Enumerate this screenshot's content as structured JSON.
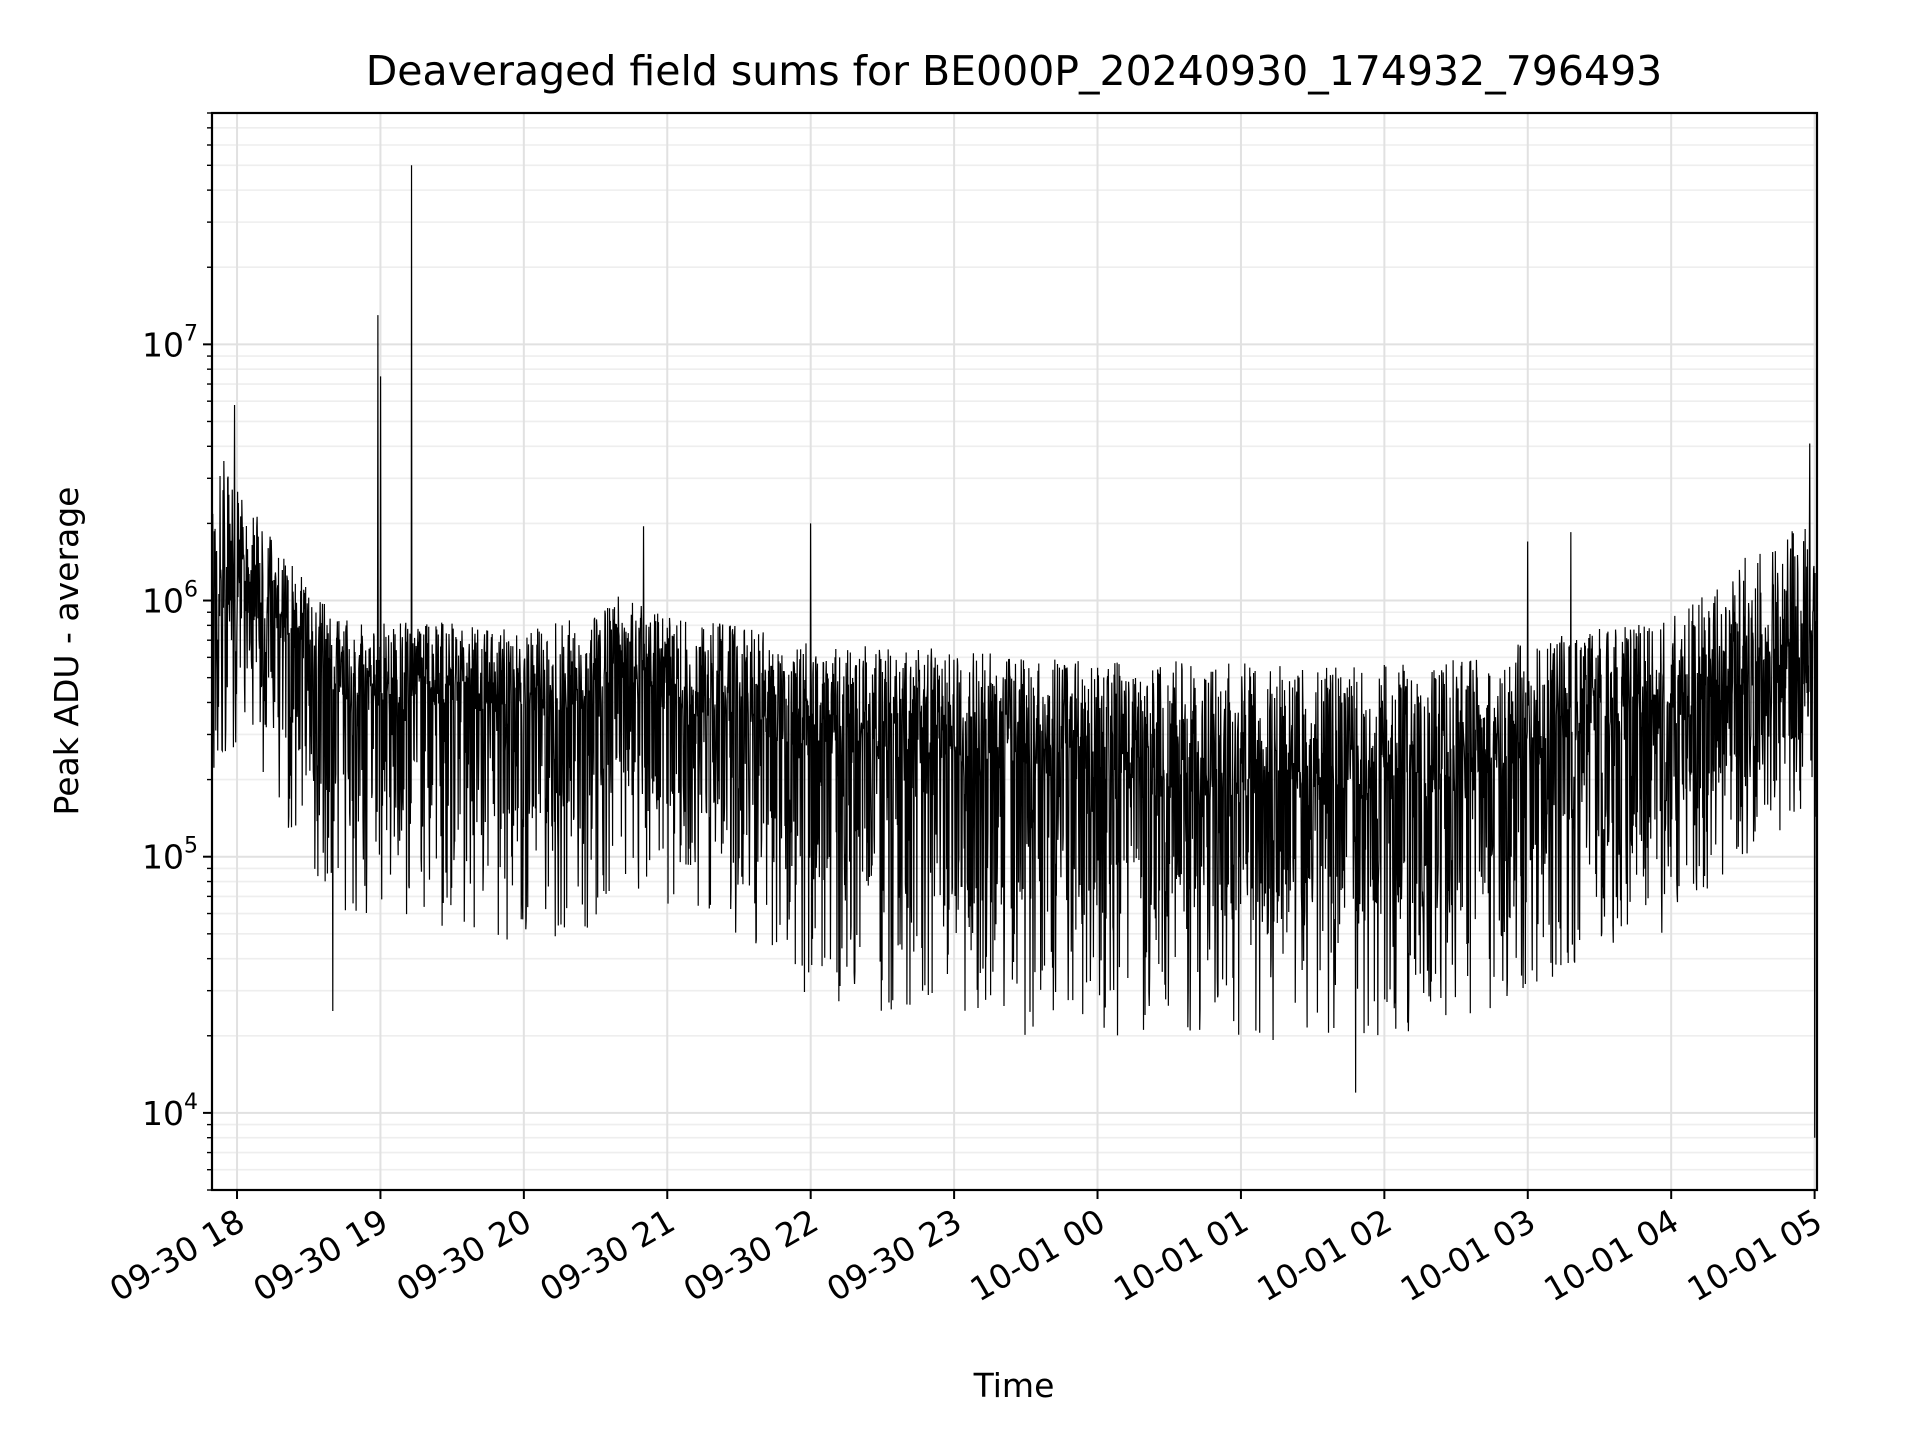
{
  "colors": {
    "line": "#000000",
    "grid": "#e1e1e1",
    "background": "#ffffff"
  },
  "chart_data": {
    "type": "line",
    "title": "Deaveraged field sums for BE000P_20240930_174932_796493",
    "xlabel": "Time",
    "ylabel": "Peak ADU - average",
    "yscale": "log",
    "grid": true,
    "xlim": [
      "2024-09-30T17:49:32",
      "2024-10-01T05:01:00"
    ],
    "ylim": [
      5000,
      80000000
    ],
    "x_ticks": [
      {
        "t": "2024-09-30T18:00:00",
        "label": "09-30 18"
      },
      {
        "t": "2024-09-30T19:00:00",
        "label": "09-30 19"
      },
      {
        "t": "2024-09-30T20:00:00",
        "label": "09-30 20"
      },
      {
        "t": "2024-09-30T21:00:00",
        "label": "09-30 21"
      },
      {
        "t": "2024-09-30T22:00:00",
        "label": "09-30 22"
      },
      {
        "t": "2024-09-30T23:00:00",
        "label": "09-30 23"
      },
      {
        "t": "2024-10-01T00:00:00",
        "label": "10-01 00"
      },
      {
        "t": "2024-10-01T01:00:00",
        "label": "10-01 01"
      },
      {
        "t": "2024-10-01T02:00:00",
        "label": "10-01 02"
      },
      {
        "t": "2024-10-01T03:00:00",
        "label": "10-01 03"
      },
      {
        "t": "2024-10-01T04:00:00",
        "label": "10-01 04"
      },
      {
        "t": "2024-10-01T05:00:00",
        "label": "10-01 05"
      }
    ],
    "y_ticks": [
      {
        "value": 10000,
        "base": "10",
        "exp": "4"
      },
      {
        "value": 100000,
        "base": "10",
        "exp": "5"
      },
      {
        "value": 1000000,
        "base": "10",
        "exp": "6"
      },
      {
        "value": 10000000,
        "base": "10",
        "exp": "7"
      }
    ],
    "series": [
      {
        "x_start": "2024-09-30T17:49:32",
        "x_end": "2024-10-01T05:01:00",
        "envelope": [
          {
            "t": "2024-09-30T17:49:32",
            "median": 1100000,
            "upper": 3000000,
            "lower": 200000
          },
          {
            "t": "2024-09-30T17:55:00",
            "median": 1500000,
            "upper": 5500000,
            "lower": 250000
          },
          {
            "t": "2024-09-30T18:05:00",
            "median": 1300000,
            "upper": 3000000,
            "lower": 300000
          },
          {
            "t": "2024-09-30T18:20:00",
            "median": 900000,
            "upper": 1800000,
            "lower": 120000
          },
          {
            "t": "2024-09-30T18:40:00",
            "median": 550000,
            "upper": 1100000,
            "lower": 60000
          },
          {
            "t": "2024-09-30T19:00:00",
            "median": 500000,
            "upper": 1000000,
            "lower": 60000
          },
          {
            "t": "2024-09-30T19:30:00",
            "median": 500000,
            "upper": 1000000,
            "lower": 50000
          },
          {
            "t": "2024-09-30T20:00:00",
            "median": 450000,
            "upper": 950000,
            "lower": 45000
          },
          {
            "t": "2024-09-30T20:25:00",
            "median": 500000,
            "upper": 1100000,
            "lower": 50000
          },
          {
            "t": "2024-09-30T20:40:00",
            "median": 650000,
            "upper": 1300000,
            "lower": 80000
          },
          {
            "t": "2024-09-30T21:00:00",
            "median": 500000,
            "upper": 1100000,
            "lower": 60000
          },
          {
            "t": "2024-09-30T21:30:00",
            "median": 450000,
            "upper": 1000000,
            "lower": 50000
          },
          {
            "t": "2024-09-30T22:00:00",
            "median": 350000,
            "upper": 900000,
            "lower": 25000
          },
          {
            "t": "2024-09-30T22:30:00",
            "median": 350000,
            "upper": 850000,
            "lower": 25000
          },
          {
            "t": "2024-09-30T23:00:00",
            "median": 330000,
            "upper": 850000,
            "lower": 25000
          },
          {
            "t": "2024-09-30T23:30:00",
            "median": 300000,
            "upper": 800000,
            "lower": 20000
          },
          {
            "t": "2024-10-01T00:00:00",
            "median": 280000,
            "upper": 800000,
            "lower": 20000
          },
          {
            "t": "2024-10-01T00:30:00",
            "median": 260000,
            "upper": 800000,
            "lower": 20000
          },
          {
            "t": "2024-10-01T01:00:00",
            "median": 250000,
            "upper": 800000,
            "lower": 20000
          },
          {
            "t": "2024-10-01T01:30:00",
            "median": 240000,
            "upper": 750000,
            "lower": 18000
          },
          {
            "t": "2024-10-01T02:00:00",
            "median": 260000,
            "upper": 800000,
            "lower": 20000
          },
          {
            "t": "2024-10-01T02:30:00",
            "median": 270000,
            "upper": 800000,
            "lower": 22000
          },
          {
            "t": "2024-10-01T03:00:00",
            "median": 350000,
            "upper": 900000,
            "lower": 30000
          },
          {
            "t": "2024-10-01T03:30:00",
            "median": 420000,
            "upper": 1000000,
            "lower": 40000
          },
          {
            "t": "2024-10-01T04:00:00",
            "median": 450000,
            "upper": 1100000,
            "lower": 50000
          },
          {
            "t": "2024-10-01T04:30:00",
            "median": 650000,
            "upper": 2000000,
            "lower": 100000
          },
          {
            "t": "2024-10-01T05:00:00",
            "median": 700000,
            "upper": 3500000,
            "lower": 150000
          },
          {
            "t": "2024-10-01T05:01:00",
            "median": 300000,
            "upper": 500000,
            "lower": 80000
          }
        ],
        "spikes": [
          {
            "t": "2024-09-30T17:59:00",
            "value": 5800000
          },
          {
            "t": "2024-09-30T18:59:00",
            "value": 13000000
          },
          {
            "t": "2024-09-30T19:00:00",
            "value": 7500000
          },
          {
            "t": "2024-09-30T19:13:00",
            "value": 50000000
          },
          {
            "t": "2024-09-30T20:50:00",
            "value": 1950000
          },
          {
            "t": "2024-09-30T22:00:00",
            "value": 2000000
          },
          {
            "t": "2024-10-01T03:00:00",
            "value": 1700000
          },
          {
            "t": "2024-10-01T03:18:00",
            "value": 1850000
          },
          {
            "t": "2024-10-01T04:58:00",
            "value": 4100000
          }
        ],
        "dips": [
          {
            "t": "2024-09-30T18:40:00",
            "value": 25000
          },
          {
            "t": "2024-10-01T01:48:00",
            "value": 12000
          },
          {
            "t": "2024-10-01T05:00:00",
            "value": 8000
          }
        ]
      }
    ]
  }
}
